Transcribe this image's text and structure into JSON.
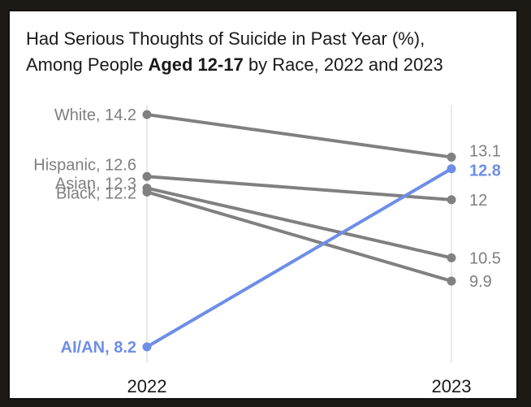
{
  "chart_data": {
    "type": "line",
    "title_line1": "Had Serious Thoughts of Suicide in Past Year (%),",
    "title_line2_pre": "Among People ",
    "title_line2_bold": "Aged 12-17",
    "title_line2_post": " by Race, 2022 and 2023",
    "x": [
      "2022",
      "2023"
    ],
    "ylim": [
      8.2,
      14.2
    ],
    "series": [
      {
        "name": "White",
        "start_label": "White, 14.2",
        "end_label": "13.1",
        "values": [
          14.2,
          13.1
        ],
        "color": "#808080",
        "label_color": "#7f7f7f",
        "highlight": false
      },
      {
        "name": "Hispanic",
        "start_label": "Hispanic, 12.6",
        "end_label": "12",
        "values": [
          12.6,
          12.0
        ],
        "color": "#808080",
        "label_color": "#7f7f7f",
        "highlight": false
      },
      {
        "name": "Asian",
        "start_label": "Asian, 12.3",
        "end_label": "10.5",
        "values": [
          12.3,
          10.5
        ],
        "color": "#808080",
        "label_color": "#7f7f7f",
        "highlight": false
      },
      {
        "name": "Black",
        "start_label": "Black, 12.2",
        "end_label": "9.9",
        "values": [
          12.2,
          9.9
        ],
        "color": "#808080",
        "label_color": "#7f7f7f",
        "highlight": false
      },
      {
        "name": "AI/AN",
        "start_label": "AI/AN, 8.2",
        "end_label": "12.8",
        "values": [
          8.2,
          12.8
        ],
        "color": "#6d8ee6",
        "label_color": "#6d8ee6",
        "highlight": true
      }
    ]
  }
}
